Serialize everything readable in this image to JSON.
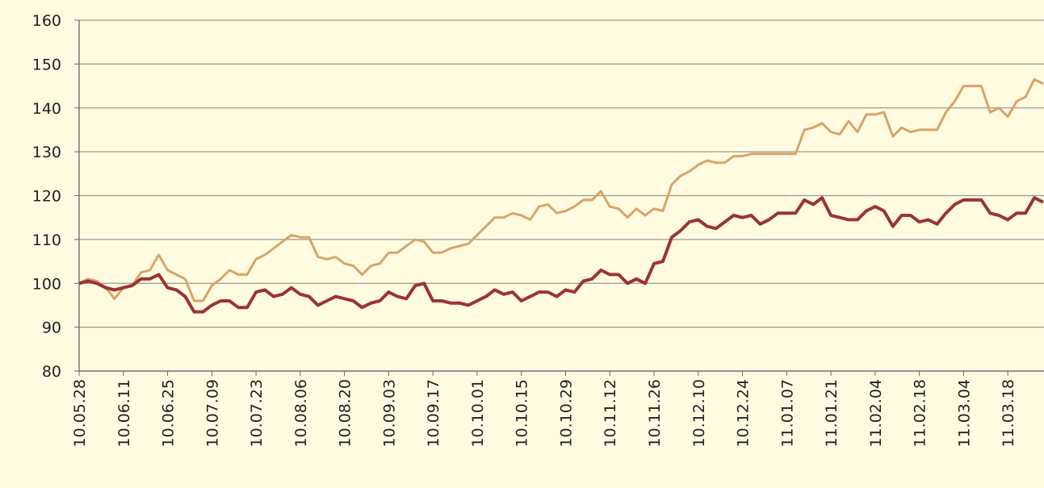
{
  "chart_data": {
    "type": "line",
    "categories": [
      "10.05.28",
      null,
      null,
      null,
      null,
      "10.06.11",
      null,
      null,
      null,
      null,
      "10.06.25",
      null,
      null,
      null,
      null,
      "10.07.09",
      null,
      null,
      null,
      null,
      "10.07.23",
      null,
      null,
      null,
      null,
      "10.08.06",
      null,
      null,
      null,
      null,
      "10.08.20",
      null,
      null,
      null,
      null,
      "10.09.03",
      null,
      null,
      null,
      null,
      "10.09.17",
      null,
      null,
      null,
      null,
      "10.10.01",
      null,
      null,
      null,
      null,
      "10.10.15",
      null,
      null,
      null,
      null,
      "10.10.29",
      null,
      null,
      null,
      null,
      "10.11.12",
      null,
      null,
      null,
      null,
      "10.11.26",
      null,
      null,
      null,
      null,
      "10.12.10",
      null,
      null,
      null,
      null,
      "10.12.24",
      null,
      null,
      null,
      null,
      "11.01.07",
      null,
      null,
      null,
      null,
      "11.01.21",
      null,
      null,
      null,
      null,
      "11.02.04",
      null,
      null,
      null,
      null,
      "11.02.18",
      null,
      null,
      null,
      null,
      "11.03.04",
      null,
      null,
      null,
      null,
      "11.03.18",
      null,
      null,
      null,
      null
    ],
    "series": [
      {
        "color": "#9b3434",
        "values": [
          100,
          100.5,
          100,
          99,
          98.5,
          99,
          99.5,
          101,
          101,
          102,
          99,
          98.5,
          97,
          93.5,
          93.5,
          95,
          96,
          96,
          94.5,
          94.5,
          98,
          98.5,
          97,
          97.5,
          99,
          97.5,
          97,
          95,
          96,
          97,
          96.5,
          96,
          94.5,
          95.5,
          96,
          98,
          97,
          96.5,
          99.5,
          100,
          96,
          96,
          95.5,
          95.5,
          95,
          96,
          97,
          98.5,
          97.5,
          98,
          96,
          97,
          98,
          98,
          97,
          98.5,
          98,
          100.5,
          101,
          103,
          102,
          102,
          100,
          101,
          100,
          104.5,
          105,
          110.5,
          112,
          114,
          114.5,
          113,
          112.5,
          114,
          115.5,
          115,
          115.5,
          113.5,
          114.5,
          116,
          116,
          116,
          119,
          118,
          119.5,
          115.5,
          115,
          114.5,
          114.5,
          116.5,
          117.5,
          116.5,
          113,
          115.5,
          115.5,
          114,
          114.5,
          113.5,
          116,
          118,
          119,
          119,
          119,
          116,
          115.5,
          114.5,
          116,
          116,
          119.5,
          118.5
        ]
      },
      {
        "color": "#d9a468",
        "values": [
          100,
          101,
          100.5,
          99,
          96.5,
          99,
          99.5,
          102.5,
          103,
          106.5,
          103,
          102,
          101,
          96,
          96,
          99.5,
          101,
          103,
          102,
          102,
          105.5,
          106.5,
          108,
          109.5,
          111,
          110.5,
          110.5,
          106,
          105.5,
          106,
          104.5,
          104,
          102,
          104,
          104.5,
          107,
          107,
          108.5,
          110,
          109.5,
          107,
          107,
          108,
          108.5,
          109,
          111,
          113,
          115,
          115,
          116,
          115.5,
          114.5,
          117.5,
          118,
          116,
          116.5,
          117.5,
          119,
          119,
          121,
          117.5,
          117,
          115,
          117,
          115.5,
          117,
          116.5,
          122.5,
          124.5,
          125.5,
          127,
          128,
          127.5,
          127.5,
          129,
          129,
          129.5,
          129.5,
          129.5,
          129.5,
          129.5,
          129.5,
          135,
          135.5,
          136.5,
          134.5,
          134,
          137,
          134.5,
          138.5,
          138.5,
          139,
          133.5,
          135.5,
          134.5,
          135,
          135,
          135,
          139,
          141.5,
          145,
          145,
          145,
          139,
          140,
          138,
          141.5,
          142.5,
          146.5,
          145.5
        ]
      }
    ],
    "ylim": [
      80,
      160
    ],
    "yticks": [
      80,
      90,
      100,
      110,
      120,
      130,
      140,
      150,
      160
    ],
    "grid": true
  }
}
